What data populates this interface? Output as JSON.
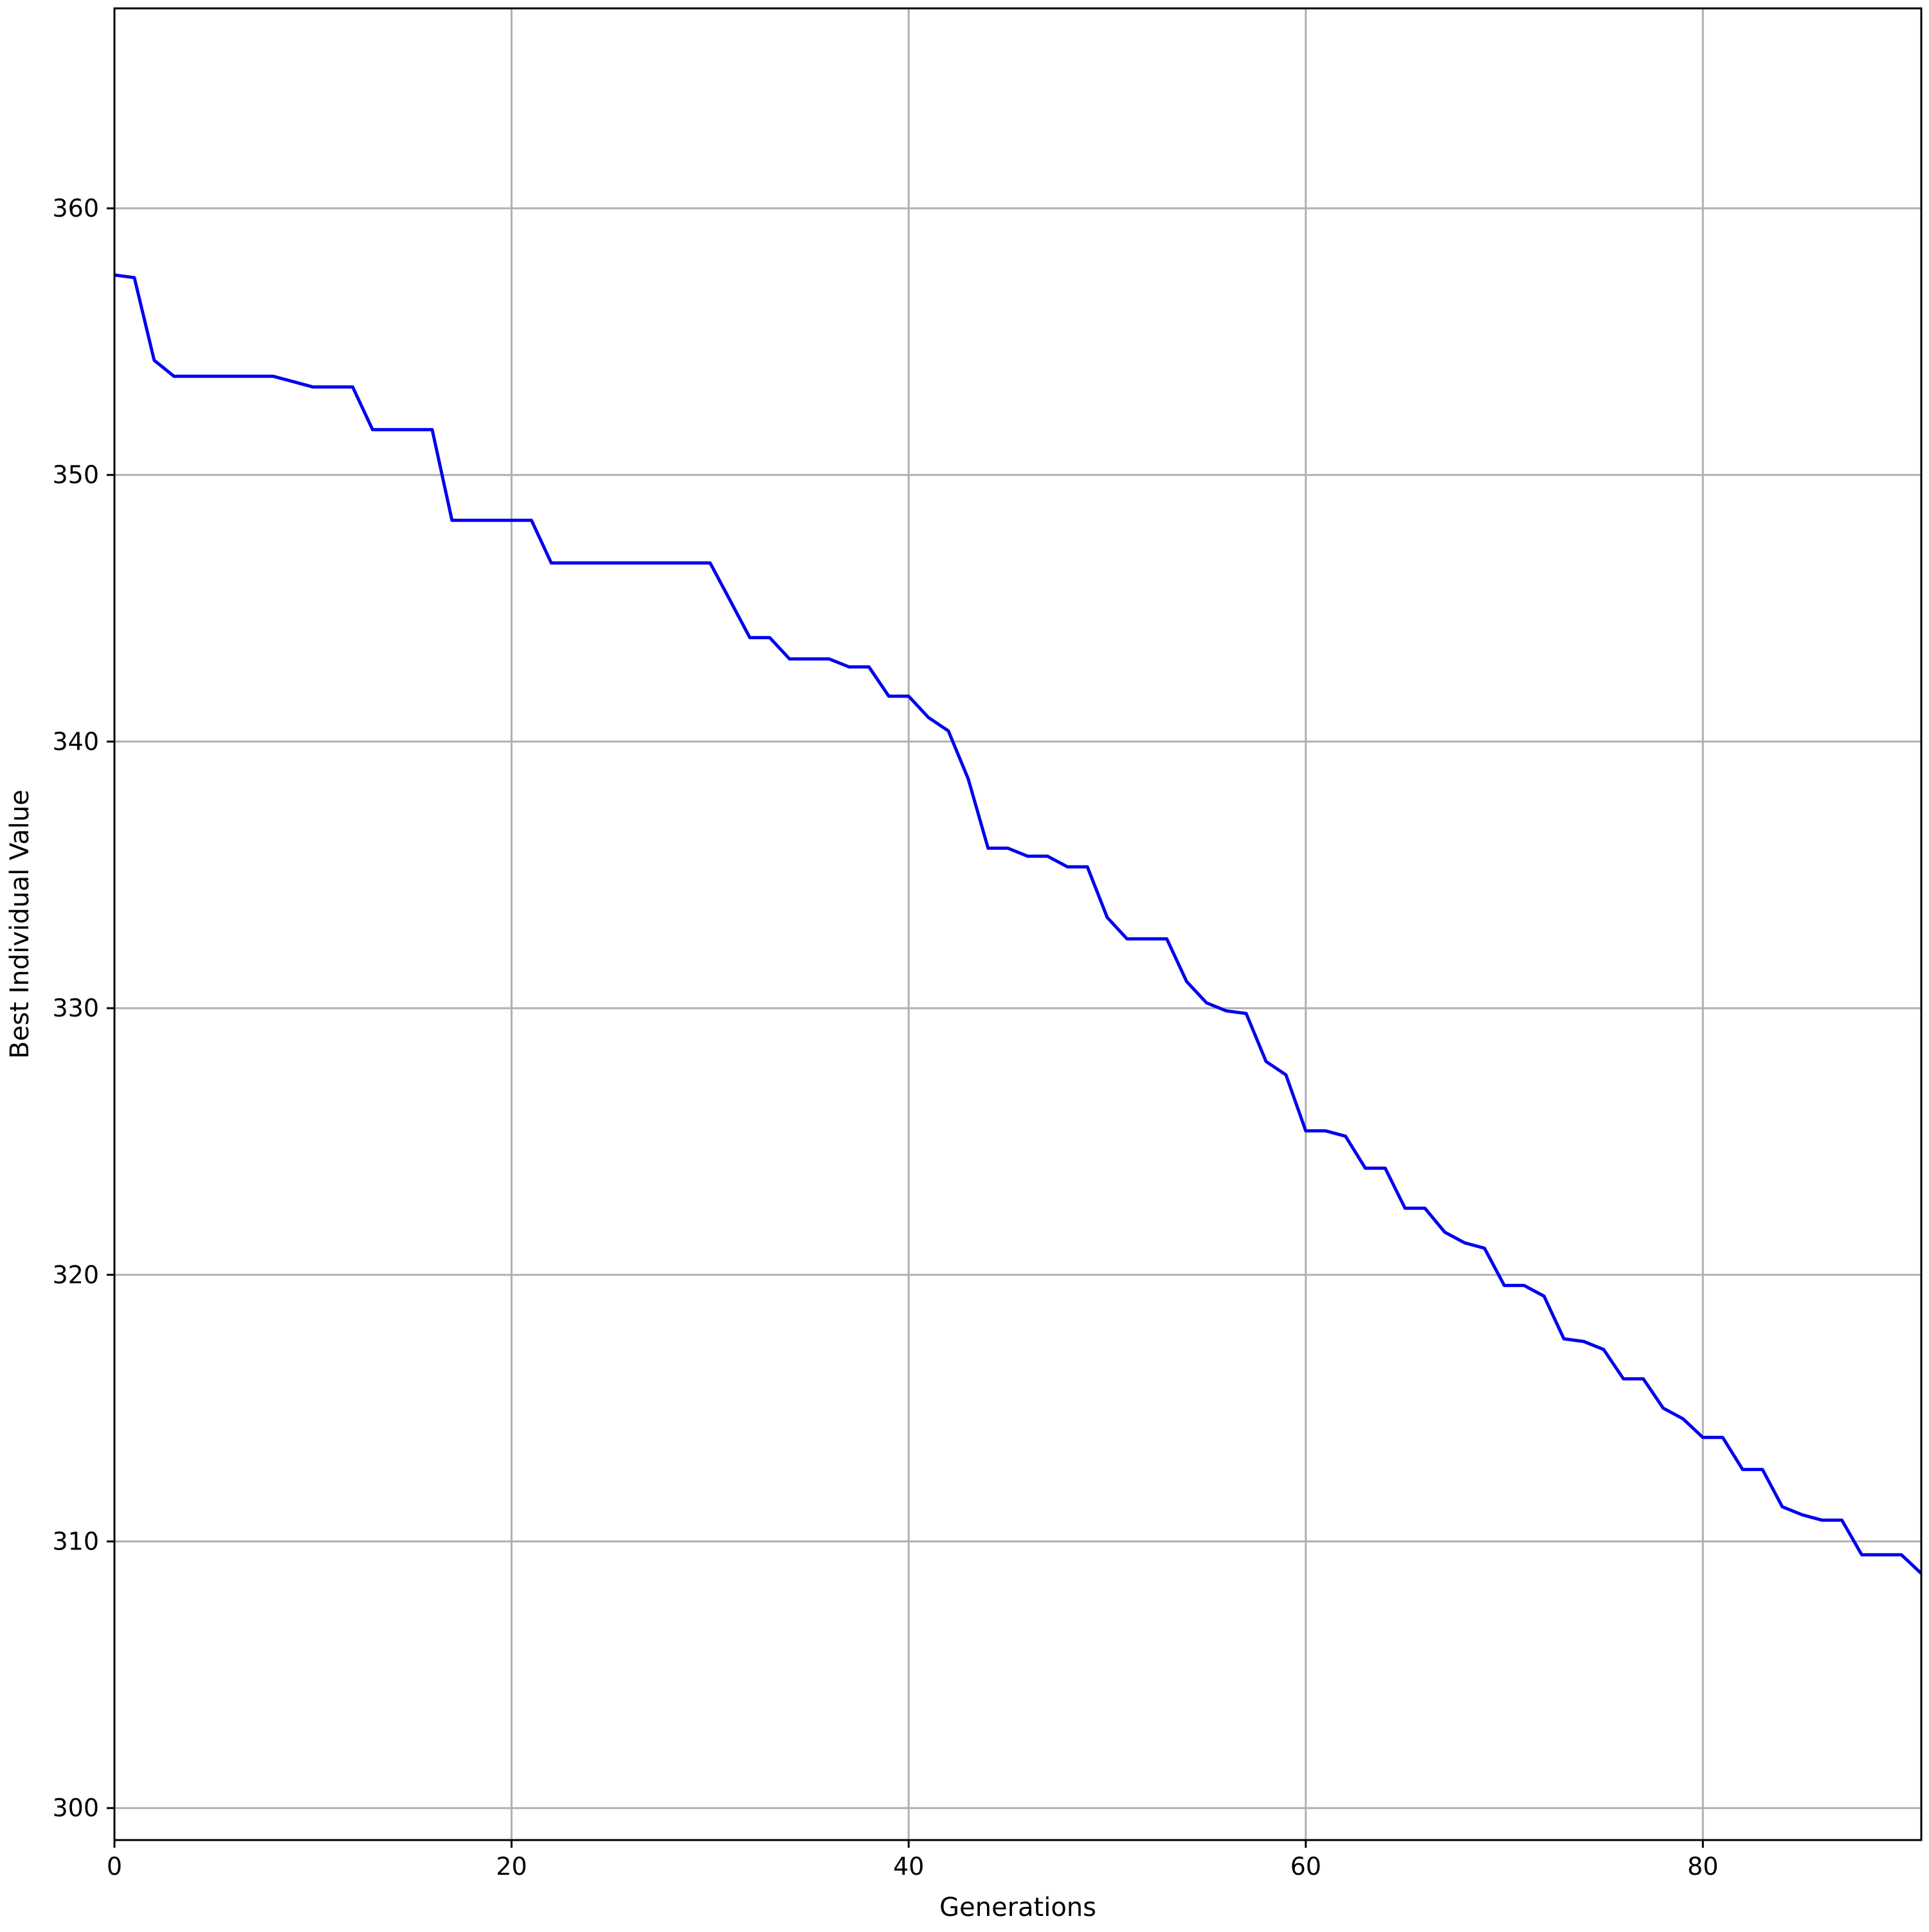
{
  "chart_data": {
    "type": "line",
    "title": "",
    "xlabel": "Generations",
    "ylabel": "Best Individual Value",
    "xlim": [
      0,
      91
    ],
    "ylim": [
      298.8,
      367.5
    ],
    "xticks": [
      0,
      20,
      40,
      60,
      80
    ],
    "yticks": [
      300,
      310,
      320,
      330,
      340,
      350,
      360
    ],
    "xtick_labels": [
      "0",
      "20",
      "40",
      "60",
      "80"
    ],
    "ytick_labels": [
      "300",
      "310",
      "320",
      "330",
      "340",
      "350",
      "360"
    ],
    "grid": true,
    "series": [
      {
        "color": "#0000ee",
        "x": [
          0,
          1,
          2,
          3,
          4,
          5,
          6,
          7,
          8,
          9,
          10,
          11,
          12,
          13,
          14,
          15,
          16,
          17,
          18,
          19,
          20,
          21,
          22,
          23,
          24,
          25,
          26,
          27,
          28,
          29,
          30,
          31,
          32,
          33,
          34,
          35,
          36,
          37,
          38,
          39,
          40,
          41,
          42,
          43,
          44,
          45,
          46,
          47,
          48,
          49,
          50,
          51,
          52,
          53,
          54,
          55,
          56,
          57,
          58,
          59,
          60,
          61,
          62,
          63,
          64,
          65,
          66,
          67,
          68,
          69,
          70,
          71,
          72,
          73,
          74,
          75,
          76,
          77,
          78,
          79,
          80,
          81,
          82,
          83,
          84,
          85,
          86,
          87,
          88,
          89,
          90,
          91
        ],
        "y": [
          357.5,
          357.4,
          354.3,
          353.7,
          353.7,
          353.7,
          353.7,
          353.7,
          353.7,
          353.5,
          353.3,
          353.3,
          353.3,
          351.7,
          351.7,
          351.7,
          351.7,
          348.3,
          348.3,
          348.3,
          348.3,
          348.3,
          346.7,
          346.7,
          346.7,
          346.7,
          346.7,
          346.7,
          346.7,
          346.7,
          346.7,
          345.3,
          343.9,
          343.9,
          343.1,
          343.1,
          343.1,
          342.8,
          342.8,
          341.7,
          341.7,
          340.9,
          340.4,
          338.6,
          336.0,
          336.0,
          335.7,
          335.7,
          335.3,
          335.3,
          333.4,
          332.6,
          332.6,
          332.6,
          331.0,
          330.2,
          329.9,
          329.8,
          328.0,
          327.5,
          325.4,
          325.4,
          325.2,
          324.0,
          324.0,
          322.5,
          322.5,
          321.6,
          321.2,
          321.0,
          319.6,
          319.6,
          319.2,
          317.6,
          317.5,
          317.2,
          316.1,
          316.1,
          315.0,
          314.6,
          313.9,
          313.9,
          312.7,
          312.7,
          311.3,
          311.0,
          310.8,
          310.8,
          309.5,
          309.5,
          309.5,
          308.8
        ]
      }
    ]
  }
}
